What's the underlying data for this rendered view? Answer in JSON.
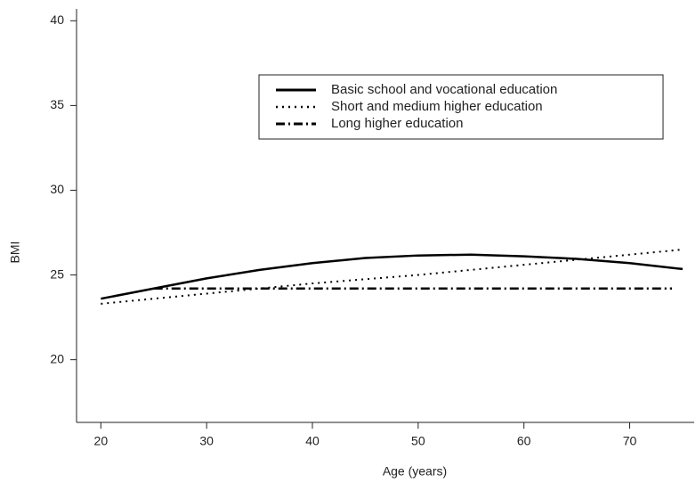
{
  "chart_data": {
    "type": "line",
    "xlabel": "Age (years)",
    "ylabel": "BMI",
    "xlim": [
      17.7,
      76.1
    ],
    "ylim": [
      16.3,
      40.7
    ],
    "xticks": [
      20,
      30,
      40,
      50,
      60,
      70
    ],
    "yticks": [
      20,
      25,
      30,
      35,
      40
    ],
    "series": [
      {
        "name": "Basic school and vocational education",
        "color": "#000000",
        "x": [
          20,
          25,
          30,
          35,
          40,
          45,
          50,
          55,
          60,
          65,
          70,
          75
        ],
        "values": [
          23.6,
          24.2,
          24.8,
          25.3,
          25.7,
          26.0,
          26.15,
          26.2,
          26.1,
          25.95,
          25.7,
          25.35
        ]
      },
      {
        "name": "Short and medium higher education",
        "color": "#000000",
        "x": [
          20,
          30,
          40,
          50,
          60,
          70,
          75
        ],
        "values": [
          23.3,
          23.9,
          24.5,
          25.0,
          25.6,
          26.2,
          26.5
        ]
      },
      {
        "name": "Long higher education",
        "color": "#000000",
        "x": [
          25,
          74
        ],
        "values": [
          24.2,
          24.2
        ]
      }
    ]
  }
}
